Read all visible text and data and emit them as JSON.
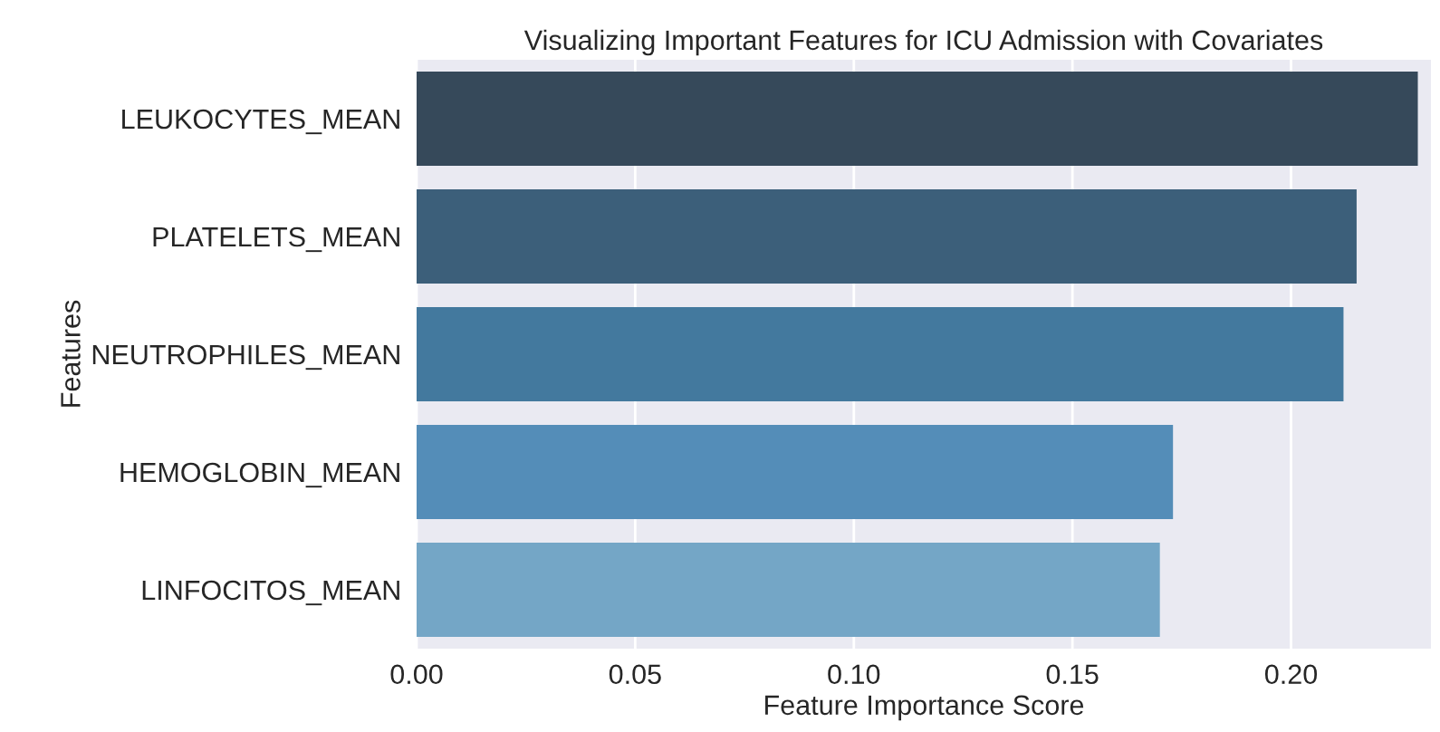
{
  "chart_data": {
    "type": "bar",
    "orientation": "horizontal",
    "title": "Visualizing Important Features for ICU Admission with Covariates",
    "xlabel": "Feature Importance Score",
    "ylabel": "Features",
    "categories": [
      "LEUKOCYTES_MEAN",
      "PLATELETS_MEAN",
      "NEUTROPHILES_MEAN",
      "HEMOGLOBIN_MEAN",
      "LINFOCITOS_MEAN"
    ],
    "values": [
      0.229,
      0.215,
      0.212,
      0.173,
      0.17
    ],
    "colors": [
      "#36495a",
      "#3c5f7a",
      "#43799e",
      "#548db8",
      "#74a6c6"
    ],
    "xlim": [
      0,
      0.232
    ],
    "xticks": [
      {
        "value": 0,
        "label": "0.00"
      },
      {
        "value": 0.05,
        "label": "0.05"
      },
      {
        "value": 0.1,
        "label": "0.10"
      },
      {
        "value": 0.15,
        "label": "0.15"
      },
      {
        "value": 0.2,
        "label": "0.20"
      }
    ],
    "grid": "x"
  }
}
